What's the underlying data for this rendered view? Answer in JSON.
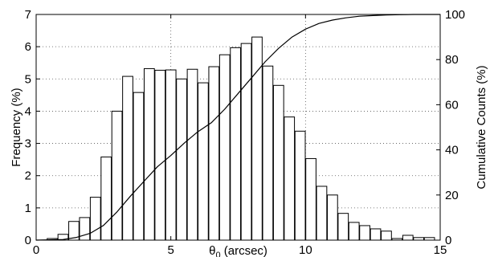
{
  "chart_data": {
    "type": "bar",
    "title": "",
    "xlabel": {
      "main": "θ",
      "subscript": "0",
      "unit": " (arcsec)"
    },
    "ylabel_left": "Frequency (%)",
    "ylabel_right": "Cumulative Counts (%)",
    "xlim": [
      0,
      15
    ],
    "ylim_left": [
      0,
      7
    ],
    "ylim_right": [
      0,
      100
    ],
    "xticks": [
      "0",
      "5",
      "10",
      "15"
    ],
    "yticks_left": [
      "0",
      "1",
      "2",
      "3",
      "4",
      "5",
      "6",
      "7"
    ],
    "yticks_right": [
      "0",
      "20",
      "40",
      "60",
      "80",
      "100"
    ],
    "grid": "dotted",
    "bar_width": 0.38,
    "series": [
      {
        "kind": "bar",
        "axis": "left",
        "x": [
          0.6,
          1.0,
          1.4,
          1.8,
          2.2,
          2.6,
          3.0,
          3.4,
          3.8,
          4.2,
          4.6,
          5.0,
          5.4,
          5.8,
          6.2,
          6.6,
          7.0,
          7.4,
          7.8,
          8.2,
          8.6,
          9.0,
          9.4,
          9.8,
          10.2,
          10.6,
          11.0,
          11.4,
          11.8,
          12.2,
          12.6,
          13.0,
          13.4,
          13.8,
          14.2,
          14.6
        ],
        "values": [
          0.05,
          0.18,
          0.58,
          0.7,
          1.33,
          2.58,
          4.0,
          5.08,
          4.58,
          5.32,
          5.27,
          5.28,
          5.0,
          5.3,
          4.88,
          5.38,
          5.75,
          5.97,
          6.1,
          6.3,
          5.4,
          4.8,
          3.82,
          3.38,
          2.53,
          1.67,
          1.4,
          0.83,
          0.55,
          0.45,
          0.35,
          0.28,
          0.05,
          0.15,
          0.08,
          0.08
        ]
      },
      {
        "kind": "line",
        "axis": "right",
        "x": [
          0,
          1,
          1.5,
          2,
          2.5,
          3,
          3.5,
          4,
          4.5,
          5,
          5.5,
          6,
          6.5,
          7,
          7.5,
          8,
          8.5,
          9,
          9.5,
          10,
          10.5,
          11,
          11.5,
          12,
          12.5,
          13,
          13.5,
          14,
          14.5,
          15
        ],
        "values": [
          0,
          0.3,
          1.2,
          3,
          6.5,
          12.5,
          19.5,
          26,
          32.5,
          37.5,
          43,
          48,
          52,
          58,
          65,
          72,
          79,
          85,
          90,
          93.5,
          96,
          97.5,
          98.5,
          99.2,
          99.5,
          99.8,
          99.9,
          100,
          100,
          100
        ]
      }
    ]
  }
}
